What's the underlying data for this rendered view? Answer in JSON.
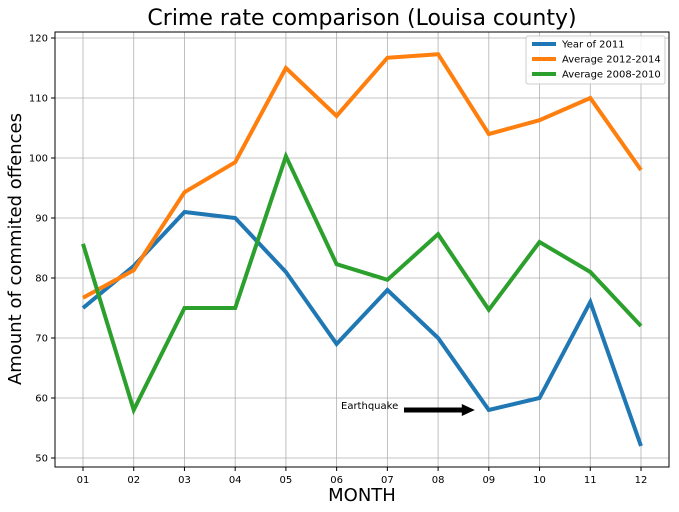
{
  "chart_data": {
    "type": "line",
    "title": "Crime rate comparison (Louisa county)",
    "xlabel": "MONTH",
    "ylabel": "Amount of commited offences",
    "categories": [
      "01",
      "02",
      "03",
      "04",
      "05",
      "06",
      "07",
      "08",
      "09",
      "10",
      "11",
      "12"
    ],
    "ylim": [
      48.5,
      121
    ],
    "yticks": [
      50,
      60,
      70,
      80,
      90,
      100,
      110,
      120
    ],
    "grid": true,
    "legend_position": "top-right",
    "series": [
      {
        "name": "Year of 2011",
        "color": "#1f77b4",
        "values": [
          75,
          82,
          91,
          90,
          81,
          69,
          78,
          70,
          58,
          60,
          76,
          52
        ]
      },
      {
        "name": "Average 2012-2014",
        "color": "#ff7f0e",
        "values": [
          76.7,
          81.3,
          94.3,
          99.3,
          115,
          107,
          116.7,
          117.3,
          104,
          106.3,
          110,
          98
        ]
      },
      {
        "name": "Average 2008-2010",
        "color": "#2ca02c",
        "values": [
          85.7,
          58,
          75,
          75,
          100.3,
          82.3,
          79.7,
          87.3,
          74.7,
          86,
          81,
          72
        ]
      }
    ],
    "annotations": [
      {
        "text": "Earthquake",
        "target_category": "09",
        "target_value": 58,
        "arrow": true
      }
    ]
  }
}
